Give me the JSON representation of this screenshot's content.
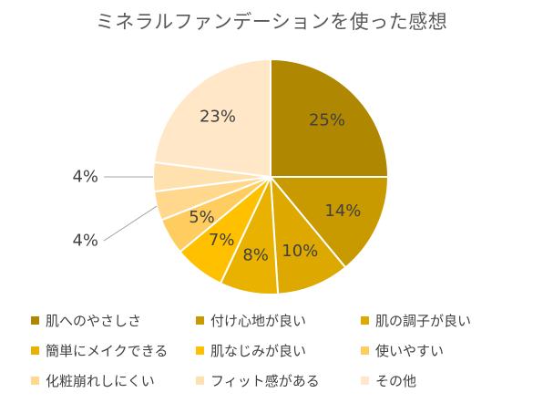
{
  "chart_data": {
    "type": "pie",
    "title": "ミネラルファンデーションを使った感想",
    "categories": [
      "肌へのやさしさ",
      "付け心地が良い",
      "肌の調子が良い",
      "簡単にメイクできる",
      "肌なじみが良い",
      "使いやすい",
      "化粧崩れしにくい",
      "フィット感がある",
      "その他"
    ],
    "values": [
      25,
      14,
      10,
      8,
      7,
      5,
      4,
      4,
      23
    ],
    "data_labels": [
      "25%",
      "14%",
      "10%",
      "8%",
      "7%",
      "5%",
      "4%",
      "4%",
      "23%"
    ],
    "colors": [
      "#B08700",
      "#C99A00",
      "#DDA800",
      "#EAB200",
      "#FFC000",
      "#FFCD5F",
      "#FFD88E",
      "#FFE1AF",
      "#FFE7C7"
    ],
    "legend_position": "bottom"
  }
}
